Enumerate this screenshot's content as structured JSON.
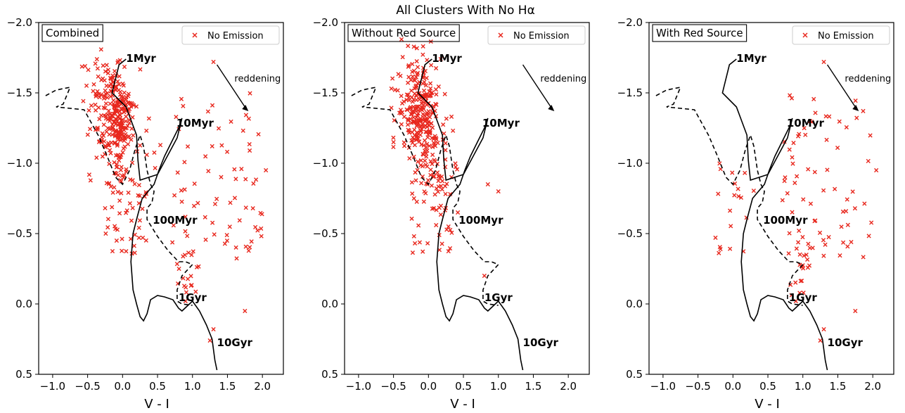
{
  "figure": {
    "title": "All Clusters With No Hα"
  },
  "chart_data": [
    {
      "type": "scatter",
      "panel_title": "Combined",
      "xlabel": "V - I",
      "ylabel": "",
      "xlim": [
        -1.2,
        2.3
      ],
      "ylim": [
        0.5,
        -2.0
      ],
      "xticks": [
        "−1.0",
        "−0.5",
        "0.0",
        "0.5",
        "1.0",
        "1.5",
        "2.0"
      ],
      "yticks": [
        "−2.0",
        "−1.5",
        "−1.0",
        "−0.5",
        "0.0",
        "0.5"
      ],
      "legend": {
        "label": "No Emission",
        "position": "top-right"
      },
      "series": [
        {
          "name": "No Emission",
          "marker": "x",
          "color": "#e8281e",
          "count": "approx 420 points",
          "x": [
            -0.5,
            -0.45,
            -0.4,
            -0.35,
            -0.3,
            -0.28,
            -0.25,
            -0.22,
            -0.2,
            -0.18,
            -0.15,
            -0.12,
            -0.1,
            -0.08,
            -0.05,
            -0.02,
            0.0,
            0.02,
            0.05,
            0.08,
            0.1,
            0.12,
            0.15,
            0.18,
            0.2,
            0.22,
            0.25,
            0.28,
            0.3,
            0.35,
            0.4,
            0.45,
            0.5,
            0.55,
            0.6,
            0.65,
            0.7,
            0.75,
            0.8,
            0.85,
            0.9,
            0.95,
            1.0,
            1.05,
            1.1,
            1.15,
            1.2,
            1.25,
            1.3,
            1.35,
            1.4,
            1.45,
            1.5,
            1.55,
            1.6,
            1.65,
            1.7,
            1.75,
            1.8,
            1.85,
            1.9,
            1.95,
            2.0,
            2.05,
            2.1
          ],
          "y": [
            -1.75,
            -1.55,
            -1.42,
            -1.6,
            -1.5,
            -1.35,
            -1.62,
            -1.3,
            -1.55,
            -1.45,
            -1.5,
            -1.25,
            -1.4,
            -1.35,
            -1.2,
            -1.45,
            -1.3,
            -1.1,
            -1.35,
            -1.0,
            -1.25,
            -1.15,
            -0.9,
            -1.05,
            -1.2,
            -0.85,
            -1.1,
            -1.0,
            -1.3,
            -0.95,
            -1.2,
            -0.8,
            -1.1,
            -0.7,
            -0.9,
            -1.0,
            -0.75,
            -1.15,
            -0.85,
            -1.25,
            -0.6,
            -1.0,
            -0.4,
            -1.3,
            -1.1,
            -0.8,
            -0.55,
            -1.2,
            -0.3,
            -0.9,
            -1.1,
            -0.7,
            -1.3,
            -0.35,
            -1.0,
            -0.6,
            -1.2,
            -0.05,
            -1.4,
            -0.8,
            -1.5,
            -0.7,
            -1.25,
            -0.6,
            -0.95
          ]
        }
      ]
    },
    {
      "type": "scatter",
      "panel_title": "Without Red Source",
      "xlabel": "V - I",
      "ylabel": "",
      "xlim": [
        -1.2,
        2.3
      ],
      "ylim": [
        0.5,
        -2.0
      ],
      "xticks": [
        "−1.0",
        "−0.5",
        "0.0",
        "0.5",
        "1.0",
        "1.5",
        "2.0"
      ],
      "yticks": [
        "−2.0",
        "−1.5",
        "−1.0",
        "−0.5",
        "0.0",
        "0.5"
      ],
      "legend": {
        "label": "No Emission",
        "position": "top-right"
      },
      "series": [
        {
          "name": "No Emission",
          "marker": "x",
          "color": "#e8281e",
          "count": "approx 330 points"
        }
      ]
    },
    {
      "type": "scatter",
      "panel_title": "With Red Source",
      "xlabel": "V - I",
      "ylabel": "",
      "xlim": [
        -1.2,
        2.3
      ],
      "ylim": [
        0.5,
        -2.0
      ],
      "xticks": [
        "−1.0",
        "−0.5",
        "0.0",
        "0.5",
        "1.0",
        "1.5",
        "2.0"
      ],
      "yticks": [
        "−2.0",
        "−1.5",
        "−1.0",
        "−0.5",
        "0.0",
        "0.5"
      ],
      "legend": {
        "label": "No Emission",
        "position": "top-right"
      },
      "series": [
        {
          "name": "No Emission",
          "marker": "x",
          "color": "#e8281e",
          "count": "approx 90 points"
        }
      ]
    }
  ],
  "tracks": {
    "solid": [
      [
        1.35,
        0.47
      ],
      [
        1.32,
        0.4
      ],
      [
        1.28,
        0.25
      ],
      [
        1.2,
        0.15
      ],
      [
        1.1,
        0.05
      ],
      [
        1.0,
        -0.02
      ],
      [
        0.85,
        0.05
      ],
      [
        0.8,
        0.03
      ],
      [
        0.72,
        -0.03
      ],
      [
        0.6,
        -0.05
      ],
      [
        0.5,
        -0.06
      ],
      [
        0.4,
        -0.03
      ],
      [
        0.35,
        0.07
      ],
      [
        0.3,
        0.12
      ],
      [
        0.25,
        0.09
      ],
      [
        0.2,
        0.0
      ],
      [
        0.15,
        -0.1
      ],
      [
        0.12,
        -0.3
      ],
      [
        0.15,
        -0.5
      ],
      [
        0.2,
        -0.6
      ],
      [
        0.28,
        -0.75
      ],
      [
        0.45,
        -0.85
      ],
      [
        0.52,
        -0.95
      ],
      [
        0.6,
        -1.05
      ],
      [
        0.7,
        -1.15
      ],
      [
        0.8,
        -1.25
      ],
      [
        0.85,
        -1.32
      ],
      [
        0.78,
        -1.18
      ],
      [
        0.5,
        -0.92
      ],
      [
        0.25,
        -0.88
      ],
      [
        0.22,
        -1.02
      ],
      [
        0.2,
        -1.2
      ],
      [
        0.05,
        -1.4
      ],
      [
        -0.15,
        -1.5
      ],
      [
        -0.05,
        -1.7
      ],
      [
        0.05,
        -1.74
      ]
    ],
    "dashed": [
      [
        -1.1,
        -1.48
      ],
      [
        -0.95,
        -1.52
      ],
      [
        -0.75,
        -1.54
      ],
      [
        -0.85,
        -1.42
      ],
      [
        -0.95,
        -1.4
      ],
      [
        -0.55,
        -1.38
      ],
      [
        -0.35,
        -1.2
      ],
      [
        -0.22,
        -1.05
      ],
      [
        -0.1,
        -0.9
      ],
      [
        0.0,
        -0.85
      ],
      [
        0.1,
        -0.95
      ],
      [
        0.18,
        -1.1
      ],
      [
        0.25,
        -1.2
      ],
      [
        0.3,
        -1.12
      ],
      [
        0.35,
        -0.95
      ],
      [
        0.4,
        -0.85
      ],
      [
        0.45,
        -0.8
      ],
      [
        0.42,
        -0.72
      ],
      [
        0.35,
        -0.68
      ],
      [
        0.35,
        -0.6
      ],
      [
        0.5,
        -0.48
      ],
      [
        0.65,
        -0.38
      ],
      [
        0.8,
        -0.3
      ],
      [
        0.9,
        -0.3
      ],
      [
        1.0,
        -0.28
      ],
      [
        0.85,
        -0.2
      ],
      [
        0.78,
        -0.1
      ],
      [
        0.78,
        -0.02
      ],
      [
        0.85,
        0.0
      ],
      [
        1.0,
        0.01
      ]
    ]
  },
  "annotations": {
    "age_1myr": "1Myr",
    "age_10myr": "10Myr",
    "age_100myr": "100Myr",
    "age_1gyr": "1Gyr",
    "age_10gyr": "10Gyr",
    "reddening": "reddening"
  },
  "colors": {
    "points": "#e8281e",
    "axes": "#000000",
    "legend_border": "#cccccc"
  }
}
